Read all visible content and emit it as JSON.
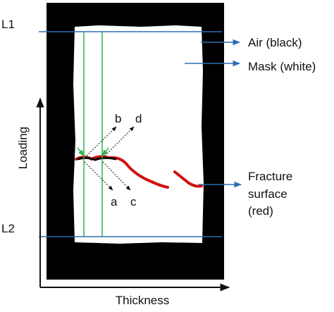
{
  "boundaries": {
    "top": "L1",
    "bottom": "L2"
  },
  "regions": {
    "air": "Air (black)",
    "mask": "Mask (white)",
    "fracture": [
      "Fracture",
      "surface",
      "(red)"
    ]
  },
  "axes": {
    "vertical": "Loading",
    "horizontal": "Thickness"
  },
  "directions": {
    "a": "a",
    "b": "b",
    "c": "c",
    "d": "d"
  }
}
